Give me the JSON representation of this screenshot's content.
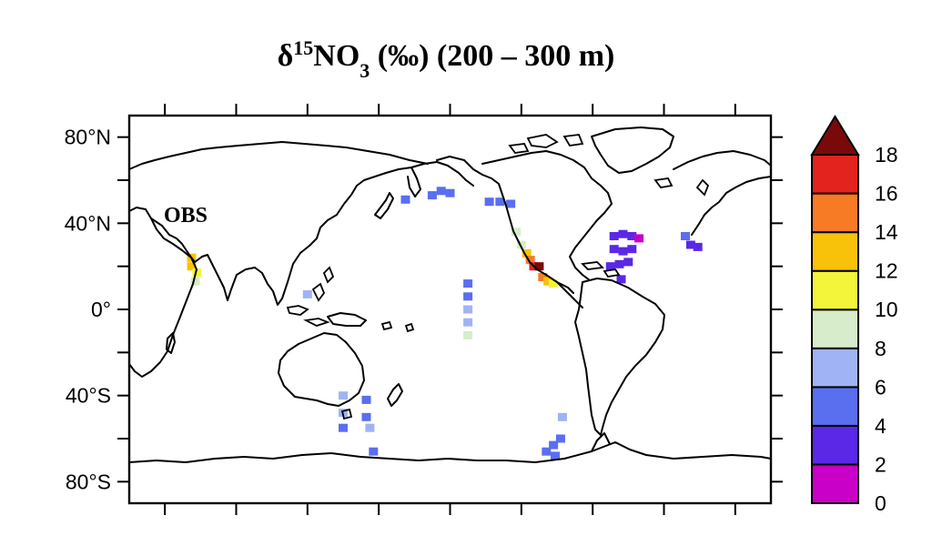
{
  "title": {
    "delta": "δ",
    "superscript": "15",
    "species": "NO",
    "subscript": "3",
    "rest": " (‰) (200 – 300 m)"
  },
  "panel_label": "OBS",
  "chart_data": {
    "type": "heatmap",
    "projection": "equirectangular",
    "lon_range": [
      20,
      380
    ],
    "lat_range": [
      -90,
      90
    ],
    "y_ticks": [
      {
        "lat": 80,
        "label": "80°N"
      },
      {
        "lat": 40,
        "label": "40°N"
      },
      {
        "lat": 0,
        "label": "0°"
      },
      {
        "lat": -40,
        "label": "40°S"
      },
      {
        "lat": -80,
        "label": "80°S"
      }
    ],
    "y_minor_ticks": [
      60,
      20,
      -20,
      -60
    ],
    "x_ticks_lon": [
      40,
      80,
      120,
      160,
      200,
      240,
      280,
      320,
      360
    ],
    "colorbar": {
      "levels": [
        "0",
        "2",
        "4",
        "6",
        "8",
        "10",
        "12",
        "14",
        "16",
        "18"
      ],
      "colors": [
        "#c800c8",
        "#5a28e6",
        "#5a6ef0",
        "#a0b4f5",
        "#d6ecca",
        "#f2f53a",
        "#f8c20a",
        "#f77a25",
        "#e2231e",
        "#7a0a0a"
      ],
      "extend": "max"
    },
    "cells": [
      {
        "lon": 190,
        "lat": 53,
        "v": 5
      },
      {
        "lon": 195,
        "lat": 55,
        "v": 5
      },
      {
        "lon": 200,
        "lat": 54,
        "v": 5
      },
      {
        "lon": 175,
        "lat": 51,
        "v": 5
      },
      {
        "lon": 222,
        "lat": 50,
        "v": 5
      },
      {
        "lon": 228,
        "lat": 50,
        "v": 5
      },
      {
        "lon": 234,
        "lat": 49,
        "v": 5
      },
      {
        "lon": 237,
        "lat": 36,
        "v": 8
      },
      {
        "lon": 240,
        "lat": 30,
        "v": 9
      },
      {
        "lon": 243,
        "lat": 26,
        "v": 13
      },
      {
        "lon": 245,
        "lat": 23,
        "v": 15
      },
      {
        "lon": 247,
        "lat": 20,
        "v": 17
      },
      {
        "lon": 250,
        "lat": 20,
        "v": 18
      },
      {
        "lon": 252,
        "lat": 15,
        "v": 14
      },
      {
        "lon": 255,
        "lat": 13,
        "v": 13
      },
      {
        "lon": 258,
        "lat": 12,
        "v": 10
      },
      {
        "lon": 210,
        "lat": 12,
        "v": 5
      },
      {
        "lon": 210,
        "lat": 6,
        "v": 5
      },
      {
        "lon": 210,
        "lat": 0,
        "v": 6
      },
      {
        "lon": 210,
        "lat": -6,
        "v": 6
      },
      {
        "lon": 210,
        "lat": -12,
        "v": 9
      },
      {
        "lon": 292,
        "lat": 34,
        "v": 3
      },
      {
        "lon": 297,
        "lat": 35,
        "v": 3
      },
      {
        "lon": 302,
        "lat": 34,
        "v": 3
      },
      {
        "lon": 306,
        "lat": 33,
        "v": 0
      },
      {
        "lon": 292,
        "lat": 28,
        "v": 3
      },
      {
        "lon": 297,
        "lat": 27,
        "v": 3
      },
      {
        "lon": 302,
        "lat": 28,
        "v": 3
      },
      {
        "lon": 290,
        "lat": 20,
        "v": 3
      },
      {
        "lon": 295,
        "lat": 21,
        "v": 3
      },
      {
        "lon": 300,
        "lat": 22,
        "v": 3
      },
      {
        "lon": 296,
        "lat": 14,
        "v": 3
      },
      {
        "lon": 332,
        "lat": 34,
        "v": 5
      },
      {
        "lon": 335,
        "lat": 30,
        "v": 3
      },
      {
        "lon": 339,
        "lat": 29,
        "v": 3
      },
      {
        "lon": 55,
        "lat": 20,
        "v": 13
      },
      {
        "lon": 58,
        "lat": 17,
        "v": 11
      },
      {
        "lon": 57,
        "lat": 13,
        "v": 9
      },
      {
        "lon": 55,
        "lat": 24,
        "v": 12
      },
      {
        "lon": 120,
        "lat": 7,
        "v": 6
      },
      {
        "lon": 140,
        "lat": -40,
        "v": 6
      },
      {
        "lon": 140,
        "lat": -48,
        "v": 6
      },
      {
        "lon": 140,
        "lat": -55,
        "v": 5
      },
      {
        "lon": 153,
        "lat": -42,
        "v": 5
      },
      {
        "lon": 153,
        "lat": -50,
        "v": 5
      },
      {
        "lon": 155,
        "lat": -55,
        "v": 6
      },
      {
        "lon": 157,
        "lat": -66,
        "v": 5
      },
      {
        "lon": 263,
        "lat": -50,
        "v": 6
      },
      {
        "lon": 262,
        "lat": -60,
        "v": 5
      },
      {
        "lon": 258,
        "lat": -63,
        "v": 5
      },
      {
        "lon": 254,
        "lat": -66,
        "v": 5
      },
      {
        "lon": 259,
        "lat": -68,
        "v": 5
      }
    ]
  }
}
